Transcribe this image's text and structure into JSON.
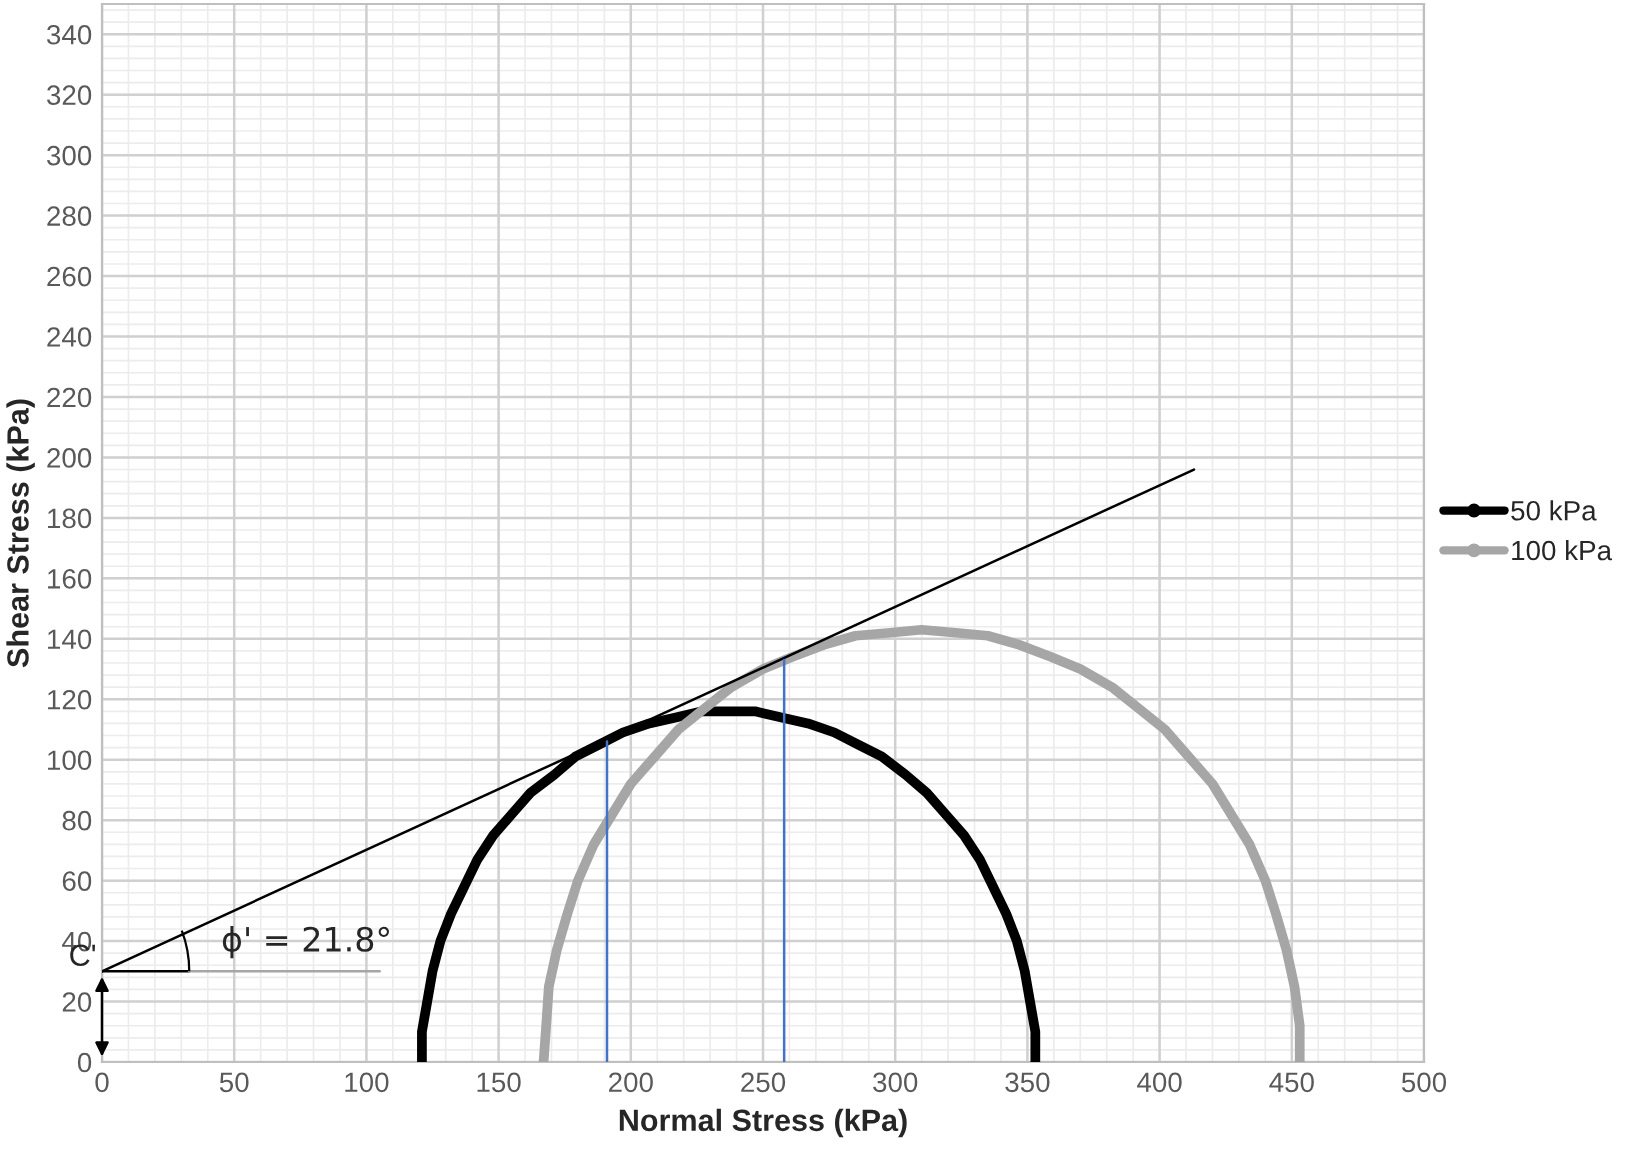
{
  "chart_data": {
    "type": "line",
    "xlabel": "Normal Stress (kPa)",
    "ylabel": "Shear Stress (kPa)",
    "xlim": [
      0,
      500
    ],
    "xticks": [
      0,
      50,
      100,
      150,
      200,
      250,
      300,
      350,
      400,
      450,
      500
    ],
    "ylim": [
      0,
      350
    ],
    "yticks": [
      0,
      20,
      40,
      60,
      80,
      100,
      120,
      140,
      160,
      180,
      200,
      220,
      240,
      260,
      280,
      300,
      320,
      340
    ],
    "grid": true,
    "legend": "right",
    "series": [
      {
        "name": "50 kPa",
        "color": "#000000",
        "marker": "circle",
        "x": [
          121,
          121,
          123,
          125,
          128,
          132,
          137,
          142,
          148,
          155,
          162,
          171,
          179,
          188,
          197,
          207,
          217,
          227,
          237,
          247,
          257,
          267,
          277,
          286,
          295,
          304,
          312,
          319,
          326,
          332,
          337,
          342,
          346,
          349,
          351,
          353,
          353
        ],
        "values": [
          0,
          10,
          20,
          30,
          40,
          49,
          58,
          67,
          75,
          82,
          89,
          95,
          101,
          105,
          109,
          112,
          114,
          116,
          116,
          116,
          114,
          112,
          109,
          105,
          101,
          95,
          89,
          82,
          75,
          67,
          58,
          49,
          40,
          30,
          20,
          10,
          0
        ]
      },
      {
        "name": "100 kPa",
        "color": "#a6a6a6",
        "marker": "circle",
        "x": [
          167,
          168,
          169,
          172,
          176,
          180,
          186,
          193,
          200,
          209,
          218,
          228,
          238,
          250,
          261,
          273,
          285,
          298,
          310,
          323,
          335,
          347,
          359,
          370,
          382,
          392,
          402,
          411,
          420,
          427,
          434,
          440,
          444,
          448,
          451,
          453,
          453
        ],
        "values": [
          0,
          12,
          25,
          37,
          49,
          60,
          72,
          82,
          92,
          101,
          110,
          117,
          124,
          130,
          134,
          138,
          141,
          142,
          143,
          142,
          141,
          138,
          134,
          130,
          124,
          117,
          110,
          101,
          92,
          82,
          72,
          60,
          49,
          37,
          25,
          12,
          0
        ]
      },
      {
        "color": "#000000",
        "x": [
          0,
          413
        ],
        "values": [
          30,
          196
        ]
      },
      {
        "color": "#4472c4",
        "x": [
          191,
          191
        ],
        "values": [
          0,
          106
        ]
      },
      {
        "color": "#4472c4",
        "x": [
          258,
          258
        ],
        "values": [
          0,
          133
        ]
      },
      {
        "color": "#000000",
        "x": [
          0,
          33
        ],
        "values": [
          30,
          30
        ]
      },
      {
        "color": "#a6a6a6",
        "x": [
          33,
          105
        ],
        "values": [
          30,
          30
        ]
      }
    ],
    "annotations": [
      {
        "text": "C'",
        "x": 0,
        "y": 30
      },
      "ϕ' = 21.8°"
    ]
  }
}
